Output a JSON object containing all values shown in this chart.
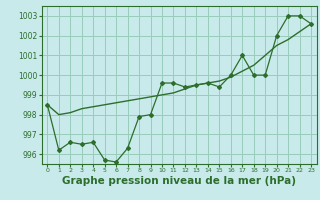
{
  "background_color": "#c8eaea",
  "grid_color": "#99ccbb",
  "line_color": "#2d6e2d",
  "xlabel": "Graphe pression niveau de la mer (hPa)",
  "xlabel_fontsize": 7.5,
  "ylim": [
    995.5,
    1003.5
  ],
  "xlim": [
    -0.5,
    23.5
  ],
  "yticks": [
    996,
    997,
    998,
    999,
    1000,
    1001,
    1002,
    1003
  ],
  "xticks": [
    0,
    1,
    2,
    3,
    4,
    5,
    6,
    7,
    8,
    9,
    10,
    11,
    12,
    13,
    14,
    15,
    16,
    17,
    18,
    19,
    20,
    21,
    22,
    23
  ],
  "series1_x": [
    0,
    1,
    2,
    3,
    4,
    5,
    6,
    7,
    8,
    9,
    10,
    11,
    12,
    13,
    14,
    15,
    16,
    17,
    18,
    19,
    20,
    21,
    22,
    23
  ],
  "series1_y": [
    998.5,
    996.2,
    996.6,
    996.5,
    996.6,
    995.7,
    995.6,
    996.3,
    997.9,
    998.0,
    999.6,
    999.6,
    999.4,
    999.5,
    999.6,
    999.4,
    1000.0,
    1001.0,
    1000.0,
    1000.0,
    1002.0,
    1003.0,
    1003.0,
    1002.6
  ],
  "series2_x": [
    0,
    1,
    2,
    3,
    4,
    5,
    6,
    7,
    8,
    9,
    10,
    11,
    12,
    13,
    14,
    15,
    16,
    17,
    18,
    19,
    20,
    21,
    22,
    23
  ],
  "series2_y": [
    998.5,
    998.0,
    998.1,
    998.3,
    998.4,
    998.5,
    998.6,
    998.7,
    998.8,
    998.9,
    999.0,
    999.1,
    999.3,
    999.5,
    999.6,
    999.7,
    999.9,
    1000.2,
    1000.5,
    1001.0,
    1001.5,
    1001.8,
    1002.2,
    1002.6
  ]
}
